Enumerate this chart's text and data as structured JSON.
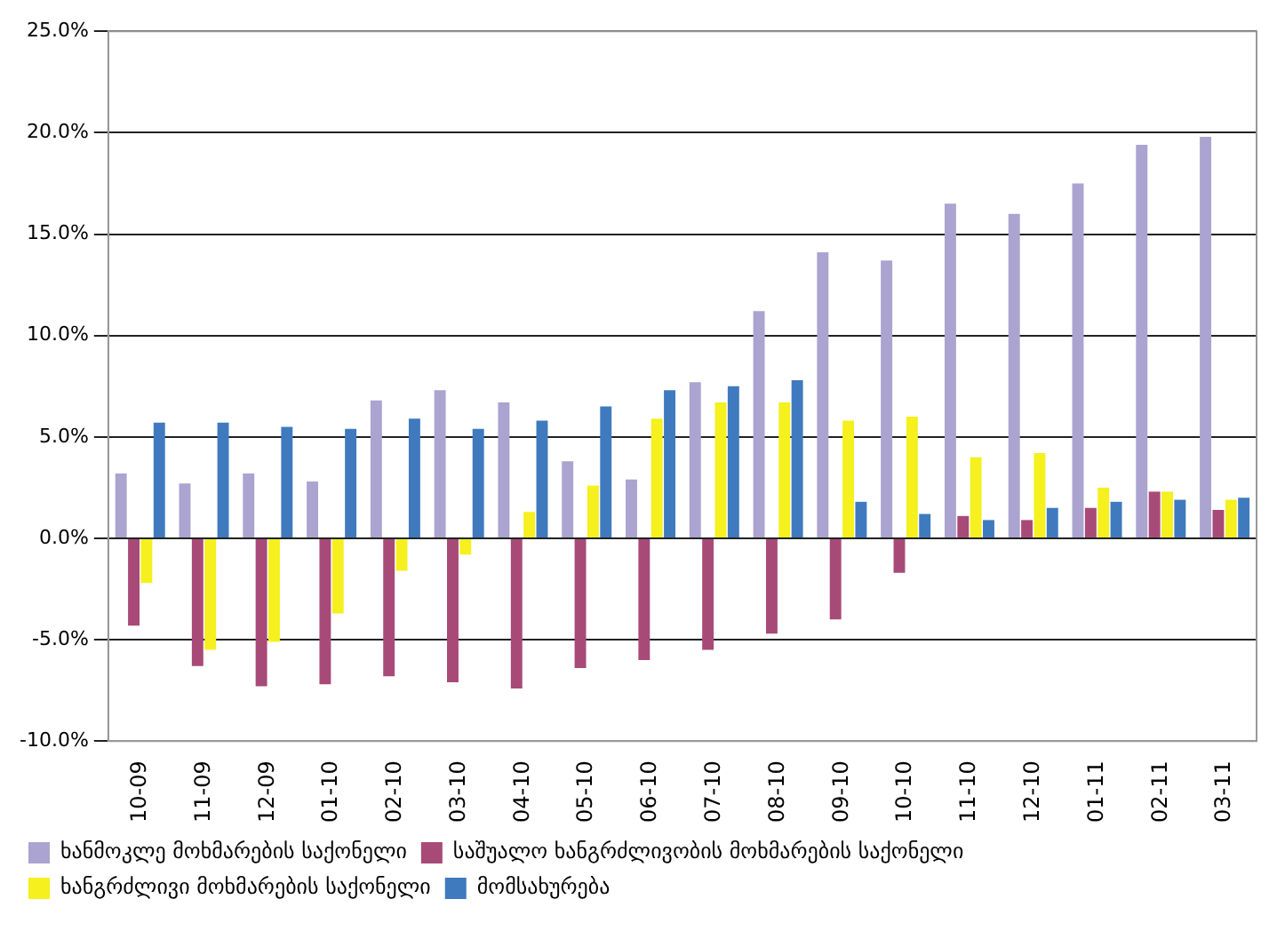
{
  "chart_data": {
    "type": "bar",
    "categories": [
      "10-09",
      "11-09",
      "12-09",
      "01-10",
      "02-10",
      "03-10",
      "04-10",
      "05-10",
      "06-10",
      "07-10",
      "08-10",
      "09-10",
      "10-10",
      "11-10",
      "12-10",
      "01-11",
      "02-11",
      "03-11"
    ],
    "series": [
      {
        "name": "ხანმოკლე მოხმარების საქონელი",
        "color": "#aba3d0",
        "values": [
          3.2,
          2.7,
          3.2,
          2.8,
          6.8,
          7.3,
          6.7,
          3.8,
          2.9,
          7.7,
          11.2,
          14.1,
          13.7,
          16.5,
          16.0,
          17.5,
          19.4,
          19.8
        ]
      },
      {
        "name": "საშუალო ხანგრძლივობის მოხმარების საქონელი",
        "color": "#a84a77",
        "values": [
          -4.3,
          -6.3,
          -7.3,
          -7.2,
          -6.8,
          -7.1,
          -7.4,
          -6.4,
          -6.0,
          -5.5,
          -4.7,
          -4.0,
          -1.7,
          1.1,
          0.9,
          1.5,
          2.3,
          1.4
        ]
      },
      {
        "name": "ხანგრძლივი მოხმარების საქონელი",
        "color": "#f5f01e",
        "values": [
          -2.2,
          -5.5,
          -5.1,
          -3.7,
          -1.6,
          -0.8,
          1.3,
          2.6,
          5.9,
          6.7,
          6.7,
          5.8,
          6.0,
          4.0,
          4.2,
          2.5,
          2.3,
          1.9
        ]
      },
      {
        "name": "მომსახურება",
        "color": "#3f7abf",
        "values": [
          5.7,
          5.7,
          5.5,
          5.4,
          5.9,
          5.4,
          5.8,
          6.5,
          7.3,
          7.5,
          7.8,
          1.8,
          1.2,
          0.9,
          1.5,
          1.8,
          1.9,
          2.0
        ]
      }
    ],
    "ylim": [
      -10,
      25
    ],
    "yticks": [
      {
        "value": -10,
        "label": "-10.0%"
      },
      {
        "value": -5,
        "label": "-5.0%"
      },
      {
        "value": 0,
        "label": "0.0%"
      },
      {
        "value": 5,
        "label": "5.0%"
      },
      {
        "value": 10,
        "label": "10.0%"
      },
      {
        "value": 15,
        "label": "15.0%"
      },
      {
        "value": 20,
        "label": "20.0%"
      },
      {
        "value": 25,
        "label": "25.0%"
      }
    ],
    "grid": "y",
    "legend": "bottom"
  }
}
